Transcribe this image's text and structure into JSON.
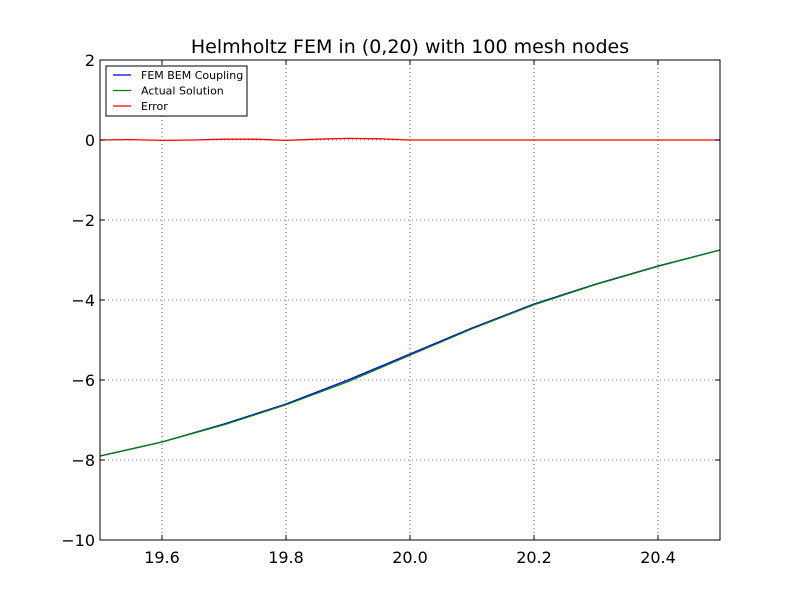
{
  "chart_data": {
    "type": "line",
    "title": "Helmholtz FEM in (0,20) with 100 mesh nodes",
    "xlabel": "",
    "ylabel": "",
    "xlim": [
      19.5,
      20.5
    ],
    "ylim": [
      -10,
      2
    ],
    "grid": true,
    "legend_position": "top-left",
    "x_ticks": [
      19.6,
      19.8,
      20.0,
      20.2,
      20.4
    ],
    "x_tick_labels": [
      "19.6",
      "19.8",
      "20.0",
      "20.2",
      "20.4"
    ],
    "y_ticks": [
      2,
      0,
      -2,
      -4,
      -6,
      -8,
      -10
    ],
    "y_tick_labels": [
      "2",
      "0",
      "−2",
      "−4",
      "−6",
      "−8",
      "−10"
    ],
    "series": [
      {
        "name": "FEM BEM Coupling",
        "color": "#0000ff",
        "x": [
          19.5,
          19.6,
          19.7,
          19.8,
          19.9,
          20.0,
          20.1,
          20.2,
          20.3,
          20.4,
          20.5
        ],
        "y": [
          -7.9,
          -7.55,
          -7.1,
          -6.6,
          -6.0,
          -5.35,
          -4.7,
          -4.1,
          -3.6,
          -3.15,
          -2.75
        ]
      },
      {
        "name": "Actual Solution",
        "color": "#008000",
        "x": [
          19.5,
          19.6,
          19.7,
          19.8,
          19.9,
          20.0,
          20.1,
          20.2,
          20.3,
          20.4,
          20.5
        ],
        "y": [
          -7.9,
          -7.55,
          -7.12,
          -6.62,
          -6.04,
          -5.38,
          -4.72,
          -4.12,
          -3.61,
          -3.16,
          -2.75
        ]
      },
      {
        "name": "Error",
        "color": "#ff0000",
        "x": [
          19.5,
          19.55,
          19.6,
          19.65,
          19.7,
          19.75,
          19.8,
          19.85,
          19.9,
          19.95,
          20.0,
          20.1,
          20.2,
          20.3,
          20.4,
          20.5
        ],
        "y": [
          0.0,
          0.01,
          -0.01,
          0.0,
          0.02,
          0.02,
          -0.01,
          0.02,
          0.04,
          0.03,
          0.0,
          0.0,
          0.0,
          0.0,
          0.0,
          0.0
        ]
      }
    ]
  }
}
